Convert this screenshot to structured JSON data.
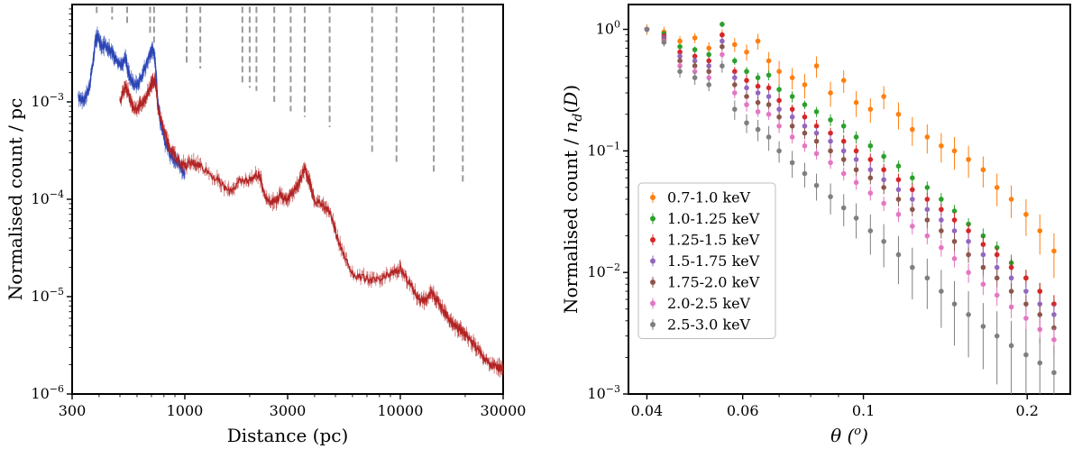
{
  "colors": {
    "blue": "#2b45b5",
    "red": "#b22222",
    "dash": "#9a9a9a",
    "orange": "#ff7f0e",
    "green": "#2ca02c",
    "crimson": "#d62728",
    "purple": "#9467bd",
    "brown": "#8c564b",
    "pink": "#e377c2",
    "gray": "#7f7f7f"
  },
  "chart_data": [
    {
      "type": "line",
      "xscale": "log",
      "yscale": "log",
      "title": "",
      "xlabel": "Distance (pc)",
      "ylabel": "Normalised count / pc",
      "xlim": [
        300,
        30000
      ],
      "ylim": [
        1e-06,
        0.01
      ],
      "xticks": [
        300,
        1000,
        3000,
        10000,
        30000
      ],
      "xticklabels": [
        "300",
        "1000",
        "3000",
        "10000",
        "30000"
      ],
      "yticks": [
        1e-06,
        1e-05,
        0.0001,
        0.001
      ],
      "yticklabels": [
        {
          "base": "10",
          "exp": "−6"
        },
        {
          "base": "10",
          "exp": "−5"
        },
        {
          "base": "10",
          "exp": "−4"
        },
        {
          "base": "10",
          "exp": "−3"
        }
      ],
      "dashed_lines": [
        {
          "x": 390,
          "ytop": 0.0095,
          "ybottom": 0.008
        },
        {
          "x": 460,
          "ytop": 0.0095,
          "ybottom": 0.007
        },
        {
          "x": 540,
          "ytop": 0.0095,
          "ybottom": 0.006
        },
        {
          "x": 690,
          "ytop": 0.0095,
          "ybottom": 0.005
        },
        {
          "x": 720,
          "ytop": 0.0095,
          "ybottom": 0.004
        },
        {
          "x": 1020,
          "ytop": 0.0095,
          "ybottom": 0.0025
        },
        {
          "x": 1180,
          "ytop": 0.0095,
          "ybottom": 0.0022
        },
        {
          "x": 1850,
          "ytop": 0.0095,
          "ybottom": 0.0015
        },
        {
          "x": 2000,
          "ytop": 0.0095,
          "ybottom": 0.0014
        },
        {
          "x": 2150,
          "ytop": 0.0095,
          "ybottom": 0.0013
        },
        {
          "x": 2600,
          "ytop": 0.0095,
          "ybottom": 0.001
        },
        {
          "x": 3100,
          "ytop": 0.0095,
          "ybottom": 0.0008
        },
        {
          "x": 3600,
          "ytop": 0.0095,
          "ybottom": 0.0007
        },
        {
          "x": 4700,
          "ytop": 0.0095,
          "ybottom": 0.00055
        },
        {
          "x": 7400,
          "ytop": 0.0095,
          "ybottom": 0.0003
        },
        {
          "x": 9600,
          "ytop": 0.0095,
          "ybottom": 0.00024
        },
        {
          "x": 14300,
          "ytop": 0.0095,
          "ybottom": 0.00018
        },
        {
          "x": 19500,
          "ytop": 0.0095,
          "ybottom": 0.00015
        }
      ],
      "series": [
        {
          "name": "blue",
          "color": "#2b45b5",
          "x": [
            320,
            340,
            360,
            375,
            385,
            395,
            410,
            430,
            450,
            470,
            490,
            510,
            530,
            550,
            570,
            600,
            630,
            660,
            690,
            710,
            730,
            750,
            770,
            800,
            850,
            900,
            950,
            1000
          ],
          "y": [
            0.0011,
            0.00105,
            0.0014,
            0.0026,
            0.0042,
            0.0048,
            0.0036,
            0.0039,
            0.0034,
            0.003,
            0.0025,
            0.0023,
            0.0029,
            0.0019,
            0.0016,
            0.0015,
            0.0018,
            0.0024,
            0.0031,
            0.0036,
            0.0026,
            0.001,
            0.00065,
            0.00042,
            0.0003,
            0.00026,
            0.00022,
            0.00018
          ]
        },
        {
          "name": "red",
          "color": "#b22222",
          "x": [
            500,
            530,
            550,
            570,
            600,
            630,
            660,
            690,
            710,
            730,
            750,
            800,
            850,
            900,
            1000,
            1100,
            1200,
            1400,
            1600,
            1800,
            2000,
            2200,
            2400,
            2600,
            2800,
            3000,
            3200,
            3400,
            3600,
            3800,
            4000,
            4400,
            4800,
            5200,
            6000,
            7000,
            8000,
            9000,
            10000,
            11000,
            12000,
            13000,
            14000,
            15000,
            16000,
            17000,
            18000,
            19000,
            20000,
            22000,
            24000,
            26000,
            28000,
            30000
          ],
          "y": [
            0.001,
            0.0015,
            0.0012,
            0.0009,
            0.00085,
            0.00095,
            0.0011,
            0.0014,
            0.0017,
            0.0016,
            0.0009,
            0.0005,
            0.00035,
            0.00028,
            0.00022,
            0.00024,
            0.00022,
            0.00016,
            0.00012,
            0.00015,
            0.00016,
            0.00018,
            0.0001,
            9.5e-05,
            0.00011,
            0.0001,
            0.00012,
            0.00015,
            0.00021,
            0.00015,
            9.5e-05,
            9e-05,
            6.5e-05,
            3.5e-05,
            1.7e-05,
            1.5e-05,
            1.45e-05,
            1.7e-05,
            1.9e-05,
            1.4e-05,
            1e-05,
            9e-06,
            1.1e-05,
            9e-06,
            7e-06,
            5.5e-06,
            5e-06,
            4.5e-06,
            4.2e-06,
            3.2e-06,
            2.5e-06,
            2e-06,
            1.9e-06,
            1.8e-06
          ]
        }
      ]
    },
    {
      "type": "scatter",
      "xscale": "log",
      "yscale": "log",
      "title": "",
      "xlabel": "θ (o)",
      "ylabel": "Normalised count / n_d(D)",
      "xlim": [
        0.037,
        0.24
      ],
      "ylim": [
        0.001,
        1.6
      ],
      "xticks": [
        0.04,
        0.06,
        0.1,
        0.2
      ],
      "xticklabels": [
        "0.04",
        "0.06",
        "0.1",
        "0.2"
      ],
      "yticks": [
        0.001,
        0.01,
        0.1,
        1
      ],
      "yticklabels": [
        {
          "base": "10",
          "exp": "−3"
        },
        {
          "base": "10",
          "exp": "−2"
        },
        {
          "base": "10",
          "exp": "−1"
        },
        {
          "base": "10",
          "exp": "0"
        }
      ],
      "x": [
        0.04,
        0.043,
        0.046,
        0.049,
        0.052,
        0.055,
        0.058,
        0.061,
        0.064,
        0.067,
        0.07,
        0.074,
        0.078,
        0.082,
        0.087,
        0.092,
        0.097,
        0.103,
        0.109,
        0.116,
        0.123,
        0.131,
        0.139,
        0.147,
        0.156,
        0.166,
        0.176,
        0.187,
        0.199,
        0.211,
        0.224
      ],
      "legend": {
        "position": "lower-left",
        "labels": [
          "0.7-1.0 keV",
          "1.0-1.25 keV",
          "1.25-1.5 keV",
          "1.5-1.75 keV",
          "1.75-2.0 keV",
          "2.0-2.5 keV",
          "2.5-3.0 keV"
        ]
      },
      "series": [
        {
          "name": "0.7-1.0 keV",
          "color": "#ff7f0e",
          "y": [
            1.0,
            0.95,
            0.8,
            0.85,
            0.7,
            0.9,
            0.75,
            0.65,
            0.8,
            0.55,
            0.45,
            0.4,
            0.35,
            0.5,
            0.3,
            0.38,
            0.25,
            0.22,
            0.28,
            0.2,
            0.15,
            0.13,
            0.11,
            0.1,
            0.085,
            0.07,
            0.05,
            0.04,
            0.03,
            0.022,
            0.015
          ],
          "err": [
            0.1,
            0.1,
            0.08,
            0.08,
            0.08,
            0.1,
            0.1,
            0.1,
            0.12,
            0.1,
            0.1,
            0.08,
            0.08,
            0.1,
            0.07,
            0.08,
            0.06,
            0.05,
            0.06,
            0.05,
            0.04,
            0.035,
            0.03,
            0.03,
            0.025,
            0.02,
            0.015,
            0.012,
            0.01,
            0.008,
            0.006
          ]
        },
        {
          "name": "1.0-1.25 keV",
          "color": "#2ca02c",
          "y": [
            1.0,
            0.92,
            0.72,
            0.68,
            0.62,
            1.1,
            0.55,
            0.45,
            0.4,
            0.42,
            0.32,
            0.28,
            0.24,
            0.21,
            0.18,
            0.16,
            0.13,
            0.11,
            0.09,
            0.075,
            0.06,
            0.05,
            0.04,
            0.032,
            0.025,
            0.02,
            0.016,
            0.012,
            0.009,
            0.007,
            0.0055
          ],
          "err": [
            0.05,
            0.05,
            0.04,
            0.04,
            0.04,
            0.06,
            0.04,
            0.04,
            0.04,
            0.04,
            0.03,
            0.03,
            0.02,
            0.02,
            0.02,
            0.02,
            0.015,
            0.012,
            0.01,
            0.008,
            0.007,
            0.006,
            0.005,
            0.004,
            0.003,
            0.003,
            0.002,
            0.002,
            0.0015,
            0.0012,
            0.001
          ]
        },
        {
          "name": "1.25-1.5 keV",
          "color": "#d62728",
          "y": [
            1.0,
            0.88,
            0.65,
            0.6,
            0.55,
            0.9,
            0.45,
            0.38,
            0.34,
            0.33,
            0.26,
            0.22,
            0.19,
            0.16,
            0.14,
            0.12,
            0.1,
            0.085,
            0.07,
            0.058,
            0.048,
            0.04,
            0.033,
            0.027,
            0.022,
            0.017,
            0.014,
            0.011,
            0.009,
            0.007,
            0.0055
          ],
          "err": [
            0.05,
            0.05,
            0.04,
            0.04,
            0.04,
            0.05,
            0.04,
            0.04,
            0.03,
            0.03,
            0.03,
            0.02,
            0.02,
            0.02,
            0.015,
            0.015,
            0.012,
            0.01,
            0.008,
            0.007,
            0.006,
            0.005,
            0.004,
            0.004,
            0.003,
            0.003,
            0.002,
            0.002,
            0.0015,
            0.0012,
            0.001
          ]
        },
        {
          "name": "1.5-1.75 keV",
          "color": "#9467bd",
          "y": [
            1.0,
            0.85,
            0.6,
            0.55,
            0.5,
            0.8,
            0.4,
            0.33,
            0.3,
            0.28,
            0.22,
            0.19,
            0.16,
            0.14,
            0.12,
            0.1,
            0.085,
            0.07,
            0.058,
            0.048,
            0.04,
            0.033,
            0.027,
            0.022,
            0.018,
            0.014,
            0.011,
            0.009,
            0.007,
            0.0055,
            0.0045
          ],
          "err": [
            0.05,
            0.05,
            0.04,
            0.04,
            0.04,
            0.05,
            0.04,
            0.03,
            0.03,
            0.03,
            0.02,
            0.02,
            0.02,
            0.015,
            0.015,
            0.012,
            0.01,
            0.008,
            0.007,
            0.006,
            0.005,
            0.004,
            0.004,
            0.003,
            0.003,
            0.002,
            0.002,
            0.0015,
            0.0012,
            0.001,
            0.0009
          ]
        },
        {
          "name": "1.75-2.0 keV",
          "color": "#8c564b",
          "y": [
            1.0,
            0.82,
            0.55,
            0.5,
            0.45,
            0.72,
            0.35,
            0.28,
            0.25,
            0.24,
            0.19,
            0.16,
            0.14,
            0.12,
            0.1,
            0.085,
            0.07,
            0.06,
            0.05,
            0.04,
            0.033,
            0.027,
            0.022,
            0.018,
            0.014,
            0.011,
            0.009,
            0.007,
            0.0055,
            0.0045,
            0.0035
          ],
          "err": [
            0.05,
            0.05,
            0.04,
            0.04,
            0.04,
            0.05,
            0.03,
            0.03,
            0.03,
            0.02,
            0.02,
            0.02,
            0.015,
            0.015,
            0.012,
            0.01,
            0.008,
            0.007,
            0.006,
            0.005,
            0.004,
            0.004,
            0.003,
            0.003,
            0.002,
            0.002,
            0.0015,
            0.0012,
            0.001,
            0.0009,
            0.0008
          ]
        },
        {
          "name": "2.0-2.5 keV",
          "color": "#e377c2",
          "y": [
            1.0,
            0.8,
            0.5,
            0.45,
            0.4,
            0.62,
            0.3,
            0.24,
            0.21,
            0.2,
            0.16,
            0.13,
            0.11,
            0.095,
            0.08,
            0.065,
            0.055,
            0.045,
            0.037,
            0.03,
            0.024,
            0.02,
            0.016,
            0.013,
            0.01,
            0.008,
            0.0065,
            0.0052,
            0.0042,
            0.0034,
            0.0028
          ],
          "err": [
            0.05,
            0.05,
            0.04,
            0.04,
            0.03,
            0.05,
            0.03,
            0.03,
            0.02,
            0.02,
            0.02,
            0.015,
            0.012,
            0.01,
            0.009,
            0.008,
            0.007,
            0.006,
            0.005,
            0.004,
            0.0035,
            0.003,
            0.0025,
            0.002,
            0.0018,
            0.0015,
            0.0012,
            0.001,
            0.0009,
            0.0008,
            0.0007
          ]
        },
        {
          "name": "2.5-3.0 keV",
          "color": "#7f7f7f",
          "y": [
            1.0,
            0.78,
            0.45,
            0.4,
            0.35,
            0.5,
            0.22,
            0.17,
            0.15,
            0.13,
            0.1,
            0.08,
            0.065,
            0.052,
            0.042,
            0.034,
            0.028,
            0.022,
            0.018,
            0.014,
            0.011,
            0.009,
            0.007,
            0.0055,
            0.0045,
            0.0036,
            0.003,
            0.0025,
            0.0021,
            0.0018,
            0.0015
          ],
          "err": [
            0.06,
            0.06,
            0.05,
            0.05,
            0.04,
            0.06,
            0.04,
            0.03,
            0.03,
            0.03,
            0.02,
            0.02,
            0.015,
            0.013,
            0.012,
            0.01,
            0.009,
            0.008,
            0.007,
            0.006,
            0.005,
            0.004,
            0.0035,
            0.003,
            0.0025,
            0.002,
            0.0018,
            0.0015,
            0.0013,
            0.0011,
            0.001
          ]
        }
      ]
    }
  ]
}
